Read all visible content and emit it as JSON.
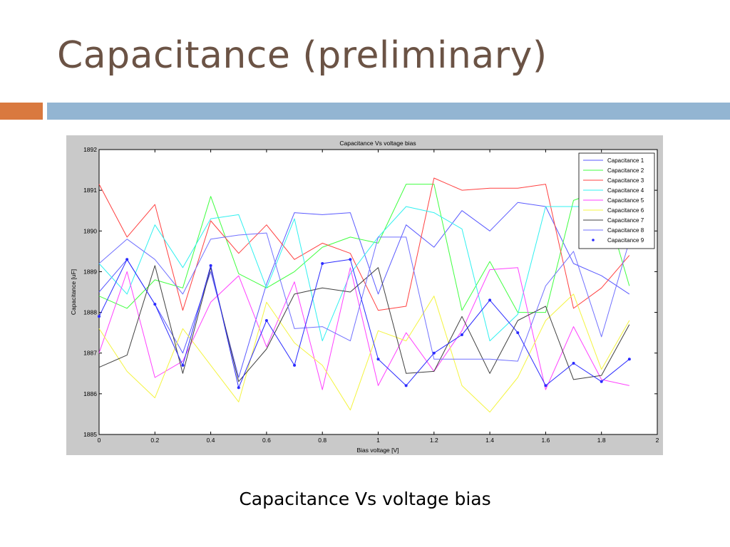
{
  "slide": {
    "title": "Capacitance (preliminary)",
    "caption": "Capacitance Vs voltage bias"
  },
  "colors": {
    "title": "#6b5345",
    "accent_orange": "#d9793f",
    "accent_blue": "#93b5d2",
    "figure_background": "#c9c9c9",
    "plot_background": "#ffffff"
  },
  "chart_data": {
    "type": "line",
    "title": "Capacitance Vs voltage bias",
    "xlabel": "Bias voltage [V]",
    "ylabel": "Capacitance [uF]",
    "xlim": [
      0,
      2
    ],
    "ylim": [
      1885,
      1892
    ],
    "xticks": [
      "0",
      "0.2",
      "0.4",
      "0.6",
      "0.8",
      "1",
      "1.2",
      "1.4",
      "1.6",
      "1.8",
      "2"
    ],
    "yticks": [
      "1885",
      "1886",
      "1887",
      "1888",
      "1889",
      "1890",
      "1891",
      "1892"
    ],
    "grid": false,
    "legend_position": "top-right",
    "x": [
      0,
      0.1,
      0.2,
      0.3,
      0.4,
      0.5,
      0.6,
      0.7,
      0.8,
      0.9,
      1.0,
      1.1,
      1.2,
      1.3,
      1.4,
      1.5,
      1.6,
      1.7,
      1.8,
      1.9
    ],
    "series": [
      {
        "name": "Capacitance 1",
        "color": "#5a5aff",
        "marker": "none",
        "values": [
          1888.5,
          1889.3,
          1888.2,
          1887.0,
          1889.0,
          1886.4,
          1888.7,
          1890.45,
          1890.4,
          1890.45,
          1888.45,
          1890.15,
          1889.6,
          1890.5,
          1890.0,
          1890.7,
          1890.6,
          1889.2,
          1888.9,
          1888.45
        ]
      },
      {
        "name": "Capacitance 2",
        "color": "#40ff40",
        "marker": "none",
        "values": [
          1888.4,
          1888.1,
          1888.8,
          1888.6,
          1890.85,
          1888.95,
          1888.6,
          1889.0,
          1889.6,
          1889.85,
          1889.7,
          1891.15,
          1891.15,
          1888.05,
          1889.25,
          1888.0,
          1888.0,
          1890.75,
          1891.0,
          1888.65
        ]
      },
      {
        "name": "Capacitance 3",
        "color": "#ff4040",
        "marker": "none",
        "values": [
          1891.15,
          1889.85,
          1890.65,
          1888.05,
          1890.25,
          1889.45,
          1890.15,
          1889.3,
          1889.7,
          1889.45,
          1888.05,
          1888.15,
          1891.3,
          1891.0,
          1891.05,
          1891.05,
          1891.15,
          1888.1,
          1888.6,
          1889.4
        ]
      },
      {
        "name": "Capacitance 4",
        "color": "#30f0f0",
        "marker": "none",
        "values": [
          1889.2,
          1888.45,
          1890.15,
          1889.1,
          1890.3,
          1890.4,
          1888.6,
          1890.3,
          1887.3,
          1888.95,
          1889.85,
          1890.6,
          1890.45,
          1890.05,
          1887.3,
          1887.95,
          1890.6,
          1890.6,
          1890.6,
          1890.6
        ]
      },
      {
        "name": "Capacitance 5",
        "color": "#ff40ff",
        "marker": "none",
        "values": [
          1887.0,
          1889.0,
          1886.4,
          1886.8,
          1888.25,
          1888.9,
          1887.15,
          1888.75,
          1886.1,
          1889.1,
          1886.2,
          1887.5,
          1886.55,
          1887.55,
          1889.05,
          1889.1,
          1886.1,
          1887.65,
          1886.35,
          1886.2
        ]
      },
      {
        "name": "Capacitance 6",
        "color": "#f4f440",
        "marker": "none",
        "values": [
          1887.6,
          1886.55,
          1885.9,
          1887.6,
          1886.7,
          1885.8,
          1888.25,
          1887.25,
          1886.7,
          1885.6,
          1887.55,
          1887.3,
          1888.4,
          1886.2,
          1885.55,
          1886.4,
          1887.8,
          1888.45,
          1886.6,
          1887.8
        ]
      },
      {
        "name": "Capacitance 7",
        "color": "#404040",
        "marker": "none",
        "values": [
          1886.65,
          1886.95,
          1889.15,
          1886.5,
          1889.1,
          1886.3,
          1887.1,
          1888.45,
          1888.6,
          1888.5,
          1889.1,
          1886.5,
          1886.55,
          1887.9,
          1886.5,
          1887.8,
          1888.15,
          1886.35,
          1886.45,
          1887.7
        ]
      },
      {
        "name": "Capacitance 8",
        "color": "#7070ff",
        "marker": "none",
        "values": [
          1889.2,
          1889.8,
          1889.3,
          1888.45,
          1889.8,
          1889.9,
          1889.95,
          1887.6,
          1887.65,
          1887.3,
          1889.85,
          1889.85,
          1886.85,
          1886.85,
          1886.85,
          1886.8,
          1888.65,
          1889.5,
          1887.4,
          1889.75
        ]
      },
      {
        "name": "Capacitance 9",
        "color": "#2a2aff",
        "marker": "dot",
        "values": [
          1887.9,
          1889.3,
          1888.2,
          1886.7,
          1889.15,
          1886.15,
          1887.8,
          1886.7,
          1889.2,
          1889.3,
          1886.85,
          1886.2,
          1887.0,
          1887.45,
          1888.3,
          1887.5,
          1886.2,
          1886.75,
          1886.3,
          1886.85
        ]
      }
    ]
  }
}
